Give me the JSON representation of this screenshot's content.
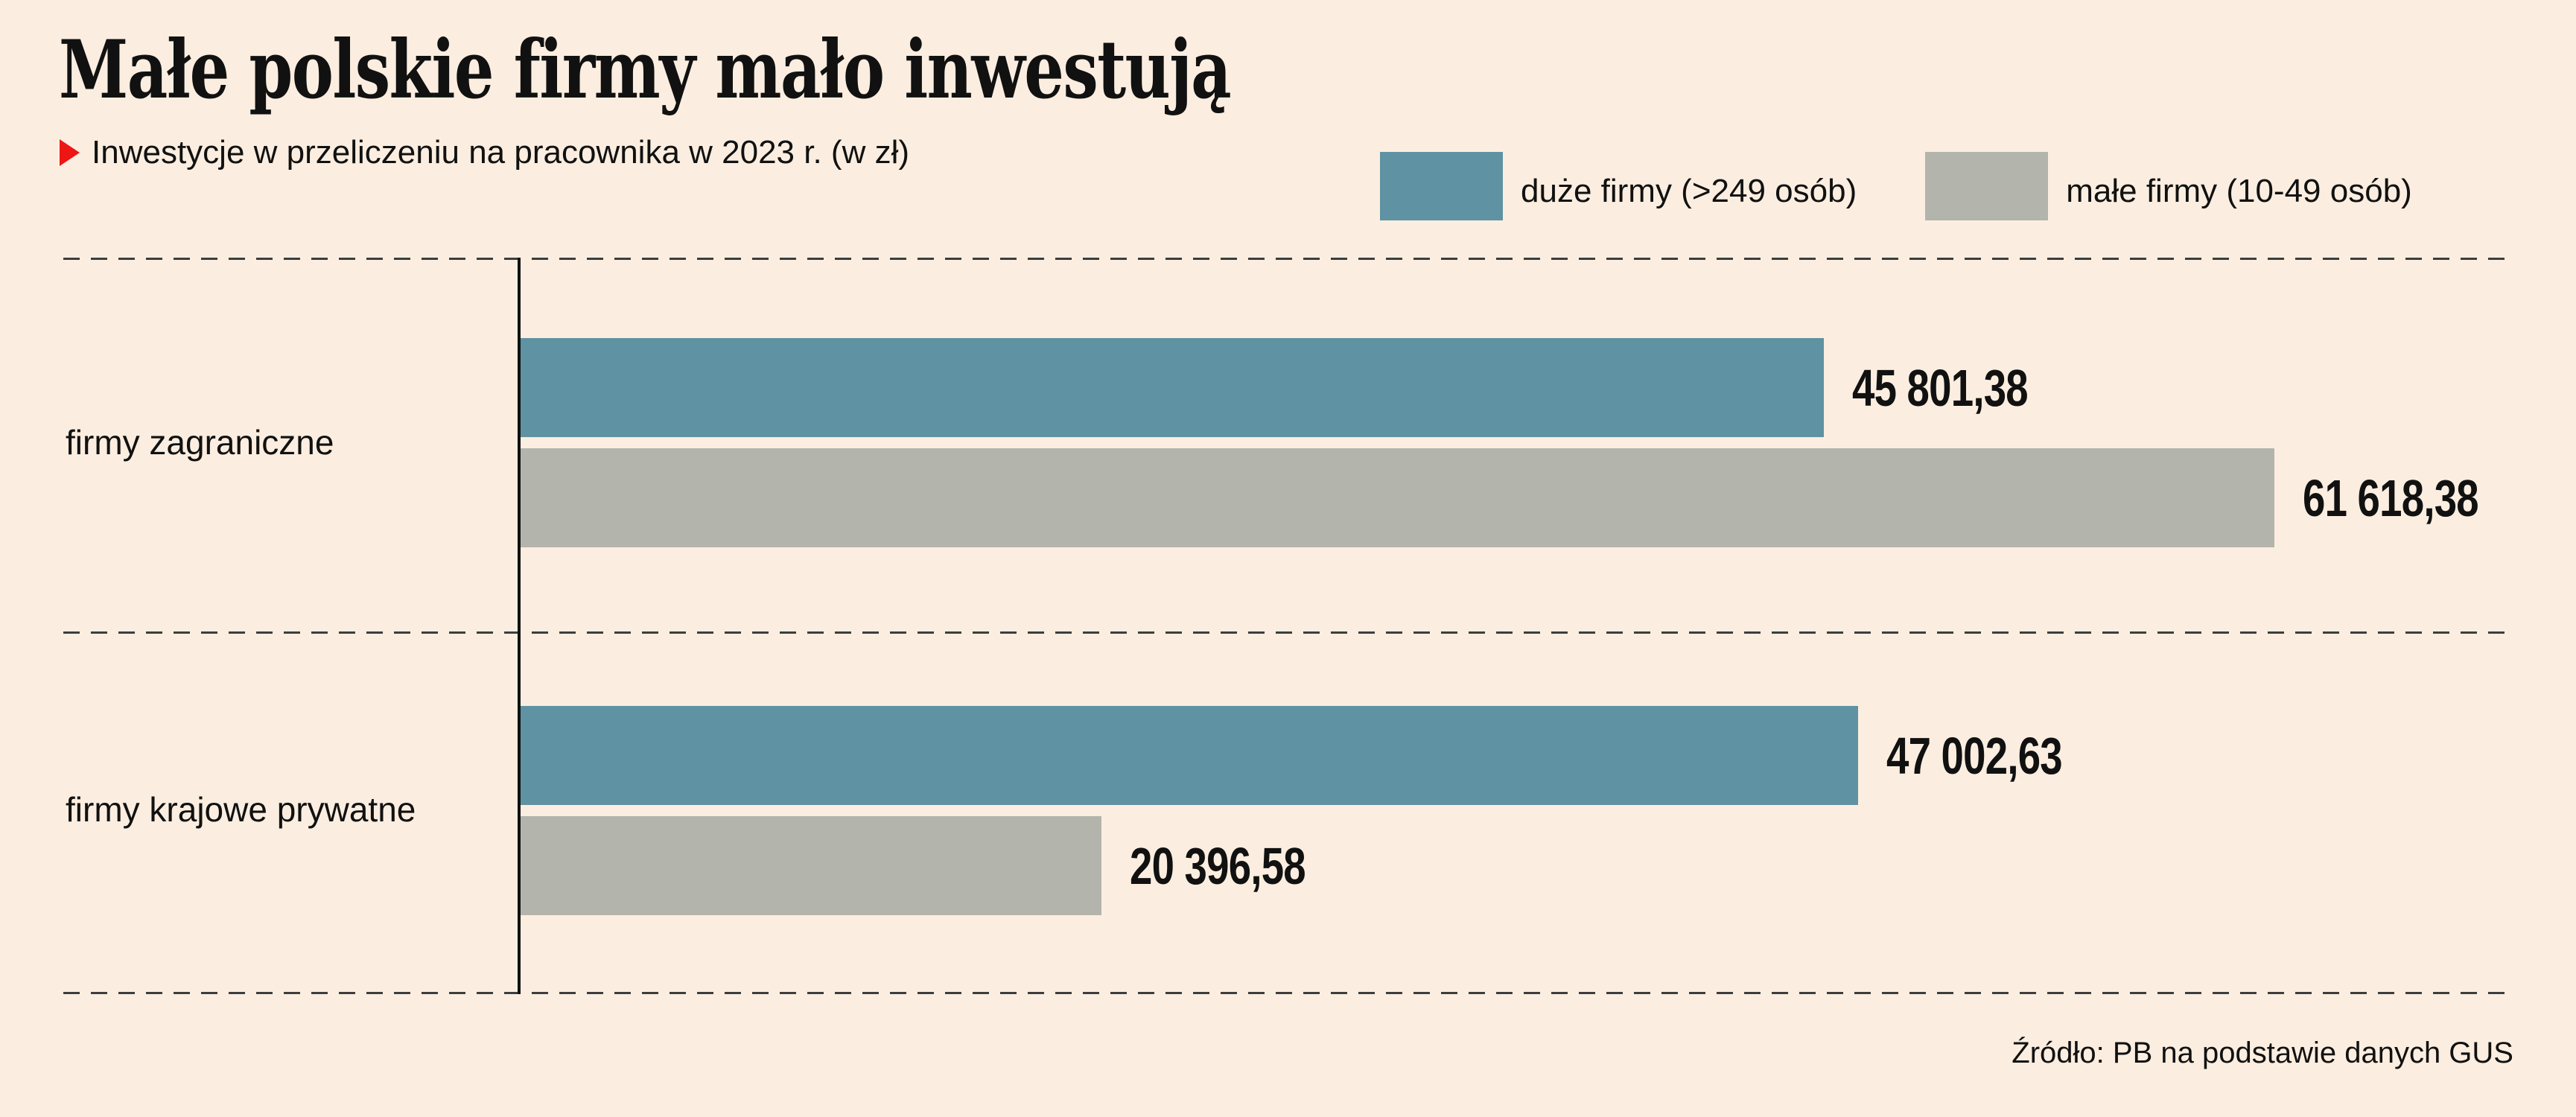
{
  "header": {
    "title": "Małe polskie firmy mało inwestują",
    "subtitle": "Inwestycje w przeliczeniu na pracownika w 2023 r. (w zł)"
  },
  "legend": {
    "items": [
      {
        "label": "duże firmy (>249 osób)",
        "color": "#5f92a2"
      },
      {
        "label": "małe firmy (10-49 osób)",
        "color": "#b3b4ac"
      }
    ]
  },
  "chart_data": {
    "type": "bar",
    "orientation": "horizontal",
    "title": "Małe polskie firmy mało inwestują",
    "subtitle": "Inwestycje w przeliczeniu na pracownika w 2023 r. (w zł)",
    "unit": "zł",
    "year": "2023",
    "categories": [
      "firmy zagraniczne",
      "firmy krajowe prywatne"
    ],
    "series": [
      {
        "name": "duże firmy (>249 osób)",
        "color": "#5f92a2",
        "values": [
          45801.38,
          47002.63
        ],
        "value_labels": [
          "45 801,38",
          "47 002,63"
        ]
      },
      {
        "name": "małe firmy (10-49 osób)",
        "color": "#b3b4ac",
        "values": [
          61618.38,
          20396.58
        ],
        "value_labels": [
          "61 618,38",
          "20 396,58"
        ]
      }
    ],
    "axis": {
      "x_min": 0,
      "x_max": 61618.38,
      "gridlines": false
    },
    "legend_position": "top-right",
    "value_labels_visible": true
  },
  "footer": {
    "source": "Źródło: PB na podstawie danych GUS"
  },
  "colors": {
    "background": "#fbeee0",
    "accent_red": "#ee1515",
    "text": "#111111",
    "bar_large_firms": "#5f92a2",
    "bar_small_firms": "#b3b4ac",
    "dashed_line": "#3d3d3d",
    "axis_line": "#111111"
  }
}
